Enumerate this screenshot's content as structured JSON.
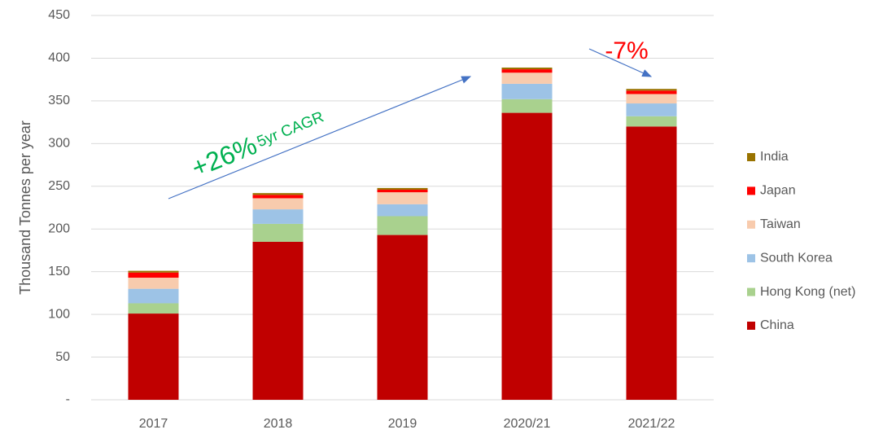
{
  "chart_data": {
    "type": "stacked_bar",
    "y_label": "Thousand Tonnes per year",
    "categories": [
      "2017",
      "2018",
      "2019",
      "2020/21",
      "2021/22"
    ],
    "series": [
      {
        "name": "China",
        "color": "#c00000",
        "values": [
          101,
          185,
          193,
          336,
          320
        ]
      },
      {
        "name": "Hong Kong (net)",
        "color": "#a9d18e",
        "values": [
          12,
          21,
          22,
          16,
          12
        ]
      },
      {
        "name": "South Korea",
        "color": "#9dc3e6",
        "values": [
          17,
          17,
          14,
          18,
          15
        ]
      },
      {
        "name": "Taiwan",
        "color": "#f8cbad",
        "values": [
          13,
          13,
          14,
          13,
          11
        ]
      },
      {
        "name": "Japan",
        "color": "#ff0000",
        "values": [
          6,
          4,
          3,
          4,
          4
        ]
      },
      {
        "name": "India",
        "color": "#997300",
        "values": [
          2,
          2,
          2,
          2,
          2
        ]
      }
    ],
    "ylim": [
      0,
      450
    ],
    "yticks": [
      {
        "value": 0,
        "label": "-"
      },
      50,
      100,
      150,
      200,
      250,
      300,
      350,
      400,
      450
    ],
    "grid": true,
    "legend": "right",
    "annotations": {
      "growth": "+26%",
      "growth_note": "5yr CAGR",
      "decline": "-7%"
    }
  }
}
